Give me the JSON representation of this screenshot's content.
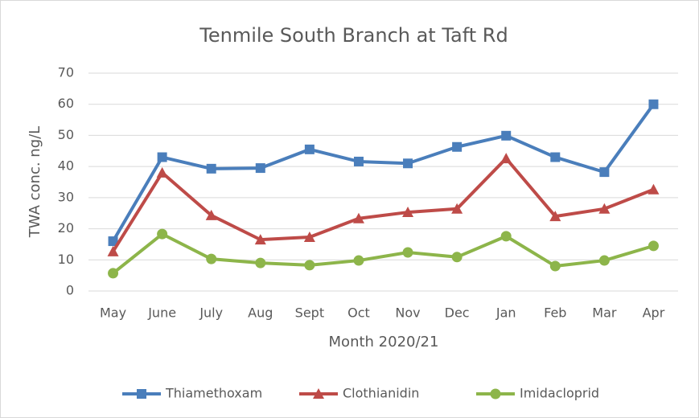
{
  "chart_data": {
    "type": "line",
    "title": "Tenmile South Branch at Taft Rd",
    "xlabel": "Month 2020/21",
    "ylabel": "TWA conc. ng/L",
    "categories": [
      "May",
      "June",
      "July",
      "Aug",
      "Sept",
      "Oct",
      "Nov",
      "Dec",
      "Jan",
      "Feb",
      "Mar",
      "Apr"
    ],
    "series": [
      {
        "name": "Thiamethoxam",
        "color": "#4a7ebb",
        "marker": "square",
        "values": [
          16,
          43,
          39.3,
          39.5,
          45.5,
          41.6,
          41,
          46.3,
          49.9,
          43,
          38.2,
          60
        ]
      },
      {
        "name": "Clothianidin",
        "color": "#be4b48",
        "marker": "triangle",
        "values": [
          12.7,
          38,
          24.3,
          16.5,
          17.3,
          23.3,
          25.3,
          26.4,
          42.6,
          24,
          26.4,
          32.6
        ]
      },
      {
        "name": "Imidacloprid",
        "color": "#8db54a",
        "marker": "circle",
        "values": [
          5.7,
          18.3,
          10.3,
          9,
          8.3,
          9.8,
          12.4,
          10.9,
          17.6,
          8,
          9.8,
          14.5
        ]
      }
    ],
    "ylim": [
      0,
      70
    ],
    "yticks": [
      0,
      10,
      20,
      30,
      40,
      50,
      60,
      70
    ],
    "grid": true,
    "legend": "bottom"
  }
}
